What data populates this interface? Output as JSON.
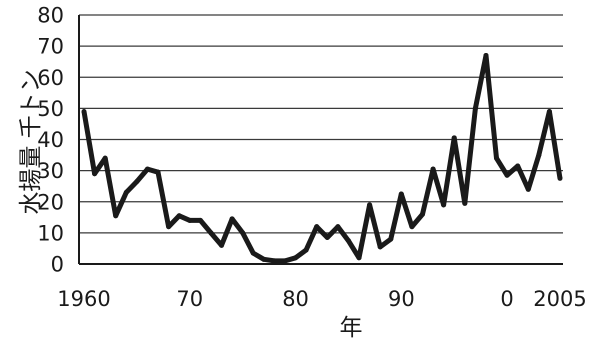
{
  "chart_data": {
    "type": "line",
    "title": "",
    "xlabel": "年",
    "ylabel": "水揚量 千トン",
    "ylim": [
      0,
      80
    ],
    "yticks": [
      0,
      10,
      20,
      30,
      40,
      50,
      60,
      70,
      80
    ],
    "xlim": [
      1960,
      2005
    ],
    "xticks": [
      {
        "value": 1960,
        "label": "1960"
      },
      {
        "value": 1970,
        "label": "70"
      },
      {
        "value": 1980,
        "label": "80"
      },
      {
        "value": 1990,
        "label": "90"
      },
      {
        "value": 2000,
        "label": "0"
      },
      {
        "value": 2005,
        "label": "2005"
      }
    ],
    "grid": "horizontal",
    "legend": "none",
    "line_color": "#1a1a1a",
    "x": [
      1960,
      1961,
      1962,
      1963,
      1964,
      1965,
      1966,
      1967,
      1968,
      1969,
      1970,
      1971,
      1972,
      1973,
      1974,
      1975,
      1976,
      1977,
      1978,
      1979,
      1980,
      1981,
      1982,
      1983,
      1984,
      1985,
      1986,
      1987,
      1988,
      1989,
      1990,
      1991,
      1992,
      1993,
      1994,
      1995,
      1996,
      1997,
      1998,
      1999,
      2000,
      2001,
      2002,
      2003,
      2004,
      2005
    ],
    "values": [
      49,
      29,
      34,
      15.5,
      23,
      26.5,
      30.5,
      29.5,
      12,
      15.5,
      14,
      14,
      10,
      6,
      14.5,
      10,
      3.5,
      1.5,
      1,
      1,
      2,
      4.5,
      12,
      8.5,
      12,
      7.5,
      2,
      19,
      5.5,
      8,
      22.5,
      12,
      16,
      30.5,
      19,
      40.5,
      19.5,
      50,
      67,
      34,
      28.5,
      31.5,
      24,
      35,
      49,
      27.5
    ]
  }
}
